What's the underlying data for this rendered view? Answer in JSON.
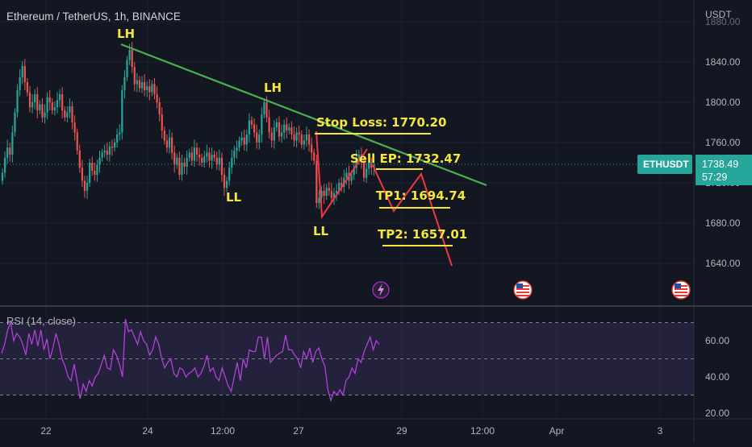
{
  "header": {
    "symbol_title": "Ethereum / TetherUS, 1h, BINANCE"
  },
  "price_axis": {
    "currency": "USDT",
    "ticks": [
      "1840.00",
      "1800.00",
      "1760.00",
      "1720.00",
      "1680.00",
      "1640.00"
    ],
    "partial_top_tick": "1880.00"
  },
  "price_badge": {
    "symbol": "ETHUSDT",
    "price": "1738.49",
    "countdown": "57:29"
  },
  "time_axis": {
    "ticks": [
      "22",
      "24",
      "12:00",
      "27",
      "29",
      "12:00",
      "Apr",
      "3"
    ]
  },
  "annotations": {
    "lh_1": "LH",
    "lh_2": "LH",
    "ll_1": "LL",
    "ll_2": "LL",
    "stop_loss": "Stop Loss: 1770.20",
    "sell_ep": "Sell EP: 1732.47",
    "tp1": "TP1: 1694.74",
    "tp2": "TP2: 1657.01"
  },
  "indicator": {
    "label": "RSI (14, close)",
    "ticks": [
      "60.00",
      "40.00",
      "20.00"
    ],
    "bands": [
      70,
      50,
      30
    ]
  },
  "colors": {
    "background": "#131722",
    "up": "#26a69a",
    "down": "#ef5350",
    "trendline": "#4caf50",
    "projection": "#f23645",
    "annotation": "#f5e63b",
    "rsi_line": "#b042d8",
    "rsi_band": "#7e57c2",
    "axis_text": "#b2b5be"
  },
  "chart_data": {
    "type": "candlestick",
    "title": "Ethereum / TetherUS, 1h, BINANCE",
    "ylim": [
      1610,
      1890
    ],
    "closes": [
      1730,
      1745,
      1755,
      1748,
      1770,
      1790,
      1812,
      1825,
      1836,
      1820,
      1810,
      1795,
      1800,
      1808,
      1792,
      1798,
      1785,
      1790,
      1805,
      1800,
      1792,
      1795,
      1802,
      1808,
      1792,
      1785,
      1790,
      1796,
      1780,
      1770,
      1752,
      1735,
      1722,
      1712,
      1720,
      1740,
      1732,
      1728,
      1738,
      1745,
      1750,
      1752,
      1748,
      1756,
      1755,
      1760,
      1768,
      1770,
      1812,
      1825,
      1842,
      1852,
      1835,
      1818,
      1822,
      1814,
      1820,
      1812,
      1816,
      1810,
      1818,
      1808,
      1800,
      1788,
      1772,
      1762,
      1755,
      1765,
      1750,
      1738,
      1745,
      1728,
      1740,
      1736,
      1745,
      1750,
      1742,
      1755,
      1748,
      1745,
      1740,
      1746,
      1750,
      1742,
      1748,
      1745,
      1738,
      1745,
      1728,
      1715,
      1722,
      1735,
      1745,
      1752,
      1755,
      1762,
      1765,
      1758,
      1768,
      1782,
      1778,
      1770,
      1760,
      1768,
      1788,
      1800,
      1785,
      1770,
      1762,
      1775,
      1780,
      1766,
      1770,
      1778,
      1772,
      1775,
      1768,
      1762,
      1770,
      1768,
      1758,
      1762,
      1768,
      1758,
      1750,
      1742,
      1700,
      1705,
      1712,
      1707,
      1715,
      1712,
      1705,
      1710,
      1712,
      1720,
      1716,
      1725,
      1730,
      1722,
      1728,
      1735,
      1745,
      1748,
      1742,
      1725,
      1734,
      1740,
      1735,
      1738
    ],
    "trendline": {
      "from": [
        0,
        1858
      ],
      "to": [
        156,
        1718
      ]
    },
    "price_levels": {
      "stop_loss": 1770.2,
      "sell_ep": 1732.47,
      "tp1": 1694.74,
      "tp2": 1657.01,
      "last_price": 1738.49
    },
    "projection_zigzag": {
      "drop_path": [
        [
          1770.2,
          0
        ],
        [
          1687,
          3
        ],
        [
          1752,
          14
        ]
      ],
      "forecast_path": [
        [
          1746,
          0
        ],
        [
          1690,
          1
        ],
        [
          1732,
          2
        ],
        [
          1637,
          3
        ]
      ]
    },
    "pattern_labels": [
      "LH",
      "LH",
      "LL",
      "LL"
    ],
    "rsi": {
      "ylim": [
        18,
        78
      ],
      "values": [
        53,
        58,
        66,
        70,
        60,
        64,
        62,
        58,
        52,
        64,
        58,
        66,
        57,
        66,
        55,
        61,
        50,
        56,
        64,
        58,
        50,
        46,
        40,
        38,
        47,
        38,
        28,
        36,
        32,
        38,
        35,
        40,
        42,
        47,
        52,
        45,
        44,
        55,
        52,
        47,
        40,
        72,
        65,
        66,
        62,
        58,
        65,
        60,
        58,
        52,
        55,
        62,
        58,
        50,
        45,
        48,
        50,
        42,
        40,
        45,
        44,
        40,
        42,
        43,
        45,
        40,
        42,
        46,
        52,
        43,
        45,
        40,
        38,
        45,
        40,
        35,
        32,
        40,
        48,
        38,
        50,
        45,
        55,
        54,
        54,
        62,
        62,
        50,
        62,
        48,
        50,
        52,
        53,
        54,
        63,
        55,
        55,
        52,
        50,
        45,
        54,
        50,
        56,
        48,
        54,
        56,
        50,
        46,
        33,
        27,
        32,
        30,
        33,
        30,
        38,
        40,
        45,
        42,
        50,
        48,
        54,
        58,
        62,
        55,
        60,
        58
      ]
    }
  }
}
